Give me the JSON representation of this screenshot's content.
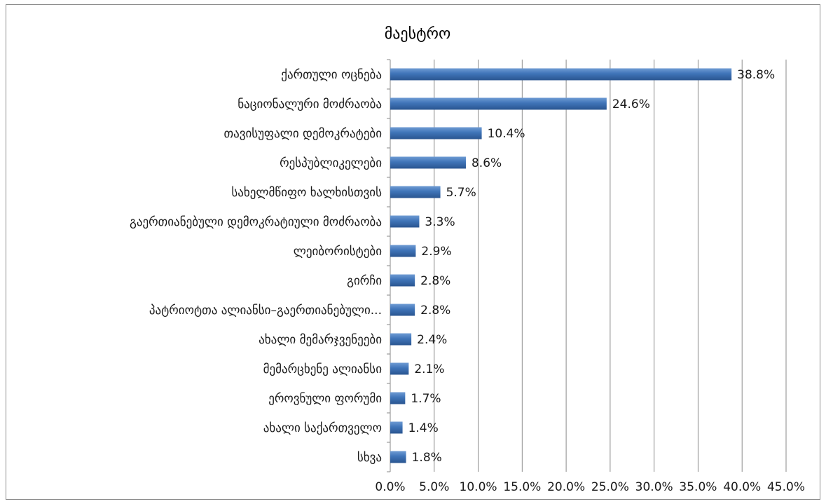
{
  "chart_data": {
    "type": "bar",
    "orientation": "horizontal",
    "title": "მაესტრო",
    "xlabel": "",
    "ylabel": "",
    "categories": [
      "ქართული ოცნება",
      "ნაციონალური მოძრაობა",
      "თავისუფალი დემოკრატები",
      "რესპუბლიკელები",
      "სახელმწიფო ხალხისთვის",
      "გაერთიანებული დემოკრატიული მოძრაობა",
      "ლეიბორისტები",
      "გირჩი",
      "პატრიოტთა ალიანსი–გაერთიანებული...",
      "ახალი მემარჯვენეები",
      "მემარცხენე ალიანსი",
      "ეროვნული ფორუმი",
      "ახალი საქართველო",
      "სხვა"
    ],
    "values": [
      38.8,
      24.6,
      10.4,
      8.6,
      5.7,
      3.3,
      2.9,
      2.8,
      2.8,
      2.4,
      2.1,
      1.7,
      1.4,
      1.8
    ],
    "data_labels": [
      "38.8%",
      "24.6%",
      "10.4%",
      "8.6%",
      "5.7%",
      "3.3%",
      "2.9%",
      "2.8%",
      "2.8%",
      "2.4%",
      "2.1%",
      "1.7%",
      "1.4%",
      "1.8%"
    ],
    "xlim": [
      0,
      45
    ],
    "xticks": [
      0,
      5,
      10,
      15,
      20,
      25,
      30,
      35,
      40,
      45
    ],
    "xtick_labels": [
      "0.0%",
      "5.0%",
      "10.0%",
      "15.0%",
      "20.0%",
      "25.0%",
      "30.0%",
      "35.0%",
      "40.0%",
      "45.0%"
    ],
    "grid": "vertical",
    "legend": "none",
    "bar_color": "#3f74b8",
    "bar_color_light": "#6e9bd3",
    "bar_color_dark": "#2a5590"
  }
}
